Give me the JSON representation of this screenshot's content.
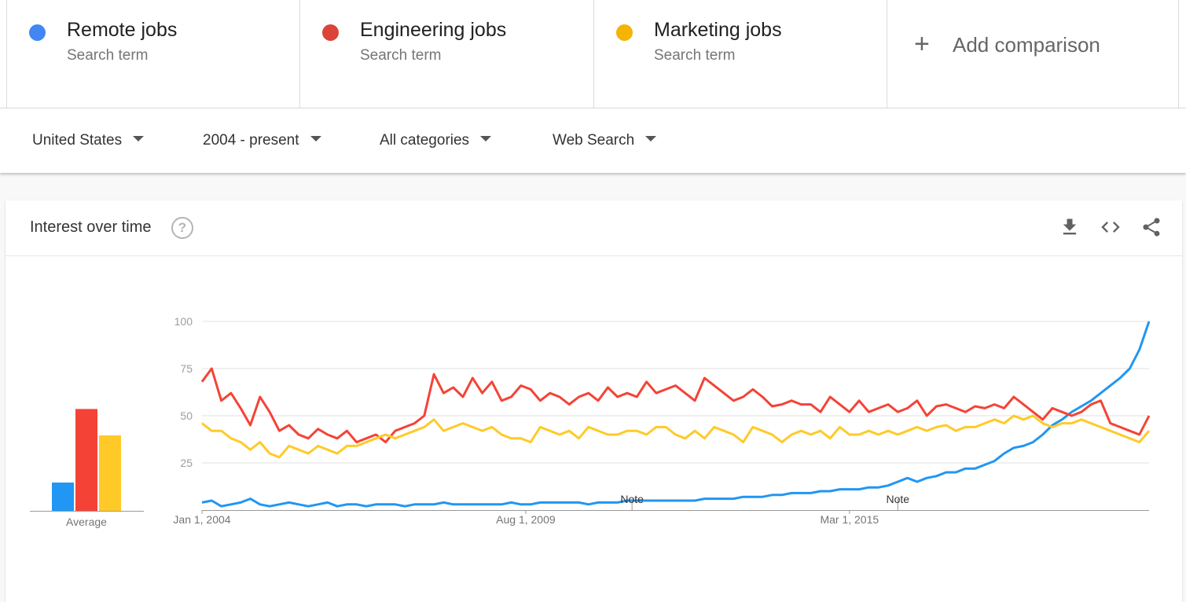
{
  "terms": [
    {
      "label": "Remote jobs",
      "subtitle": "Search term",
      "color": "#4285F4"
    },
    {
      "label": "Engineering jobs",
      "subtitle": "Search term",
      "color": "#DB4437"
    },
    {
      "label": "Marketing jobs",
      "subtitle": "Search term",
      "color": "#F4B400"
    }
  ],
  "add_comparison": {
    "label": "Add comparison",
    "icon": "plus-icon"
  },
  "filters": {
    "region": "United States",
    "time_range": "2004 - present",
    "category": "All categories",
    "property": "Web Search"
  },
  "card": {
    "title": "Interest over time",
    "icons": [
      "help-icon",
      "download-icon",
      "embed-code-icon",
      "share-icon"
    ]
  },
  "chart_data": [
    {
      "type": "bar",
      "categories": [
        "Remote jobs",
        "Engineering jobs",
        "Marketing jobs"
      ],
      "values": [
        15,
        54,
        40
      ],
      "xlabel": "Average",
      "colors": [
        "#2196F3",
        "#F44336",
        "#FFCA28"
      ],
      "ylim": [
        0,
        100
      ]
    },
    {
      "type": "line",
      "x_tick_labels": [
        "Jan 1, 2004",
        "Aug 1, 2009",
        "Mar 1, 2015"
      ],
      "y_ticks": [
        25,
        50,
        75,
        100
      ],
      "ylim": [
        0,
        100
      ],
      "xlim": [
        "2004-01",
        "2020-05"
      ],
      "grid": true,
      "annotations": [
        {
          "text": "Note",
          "x": "2011-06"
        },
        {
          "text": "Note",
          "x": "2016-01"
        }
      ],
      "x": [
        "2004-01",
        "2004-03",
        "2004-05",
        "2004-07",
        "2004-09",
        "2004-11",
        "2005-01",
        "2005-03",
        "2005-05",
        "2005-07",
        "2005-09",
        "2005-11",
        "2006-01",
        "2006-03",
        "2006-05",
        "2006-07",
        "2006-09",
        "2006-11",
        "2007-01",
        "2007-03",
        "2007-05",
        "2007-07",
        "2007-09",
        "2007-11",
        "2008-01",
        "2008-03",
        "2008-05",
        "2008-07",
        "2008-09",
        "2008-11",
        "2009-01",
        "2009-03",
        "2009-05",
        "2009-07",
        "2009-09",
        "2009-11",
        "2010-01",
        "2010-03",
        "2010-05",
        "2010-07",
        "2010-09",
        "2010-11",
        "2011-01",
        "2011-03",
        "2011-05",
        "2011-07",
        "2011-09",
        "2011-11",
        "2012-01",
        "2012-03",
        "2012-05",
        "2012-07",
        "2012-09",
        "2012-11",
        "2013-01",
        "2013-03",
        "2013-05",
        "2013-07",
        "2013-09",
        "2013-11",
        "2014-01",
        "2014-03",
        "2014-05",
        "2014-07",
        "2014-09",
        "2014-11",
        "2015-01",
        "2015-03",
        "2015-05",
        "2015-07",
        "2015-09",
        "2015-11",
        "2016-01",
        "2016-03",
        "2016-05",
        "2016-07",
        "2016-09",
        "2016-11",
        "2017-01",
        "2017-03",
        "2017-05",
        "2017-07",
        "2017-09",
        "2017-11",
        "2018-01",
        "2018-03",
        "2018-05",
        "2018-07",
        "2018-09",
        "2018-11",
        "2019-01",
        "2019-03",
        "2019-05",
        "2019-07",
        "2019-09",
        "2019-11",
        "2020-01",
        "2020-03",
        "2020-05"
      ],
      "series": [
        {
          "name": "Remote jobs",
          "color": "#2196F3",
          "values": [
            4,
            5,
            2,
            3,
            4,
            6,
            3,
            2,
            3,
            4,
            3,
            2,
            3,
            4,
            2,
            3,
            3,
            2,
            3,
            3,
            3,
            2,
            3,
            3,
            3,
            4,
            3,
            3,
            3,
            3,
            3,
            3,
            4,
            3,
            3,
            4,
            4,
            4,
            4,
            4,
            3,
            4,
            4,
            4,
            5,
            5,
            5,
            5,
            5,
            5,
            5,
            5,
            6,
            6,
            6,
            6,
            7,
            7,
            7,
            8,
            8,
            9,
            9,
            9,
            10,
            10,
            11,
            11,
            11,
            12,
            12,
            13,
            15,
            17,
            15,
            17,
            18,
            20,
            20,
            22,
            22,
            24,
            26,
            30,
            33,
            34,
            36,
            40,
            45,
            48,
            52,
            55,
            58,
            62,
            66,
            70,
            75,
            85,
            100
          ]
        },
        {
          "name": "Engineering jobs",
          "color": "#F44336",
          "values": [
            68,
            75,
            58,
            62,
            54,
            45,
            60,
            52,
            42,
            45,
            40,
            38,
            43,
            40,
            38,
            42,
            36,
            38,
            40,
            36,
            42,
            44,
            46,
            50,
            72,
            62,
            65,
            60,
            70,
            62,
            68,
            58,
            60,
            66,
            64,
            58,
            62,
            60,
            56,
            60,
            62,
            58,
            65,
            60,
            62,
            60,
            68,
            62,
            64,
            66,
            62,
            58,
            70,
            66,
            62,
            58,
            60,
            64,
            60,
            55,
            56,
            58,
            56,
            56,
            52,
            60,
            56,
            52,
            58,
            52,
            54,
            56,
            52,
            54,
            58,
            50,
            55,
            56,
            54,
            52,
            55,
            54,
            56,
            54,
            60,
            56,
            52,
            48,
            54,
            52,
            50,
            52,
            56,
            58,
            46,
            44,
            42,
            40,
            50
          ]
        },
        {
          "name": "Marketing jobs",
          "color": "#FFCA28",
          "values": [
            46,
            42,
            42,
            38,
            36,
            32,
            36,
            30,
            28,
            34,
            32,
            30,
            34,
            32,
            30,
            34,
            34,
            36,
            38,
            40,
            38,
            40,
            42,
            44,
            48,
            42,
            44,
            46,
            44,
            42,
            44,
            40,
            38,
            38,
            36,
            44,
            42,
            40,
            42,
            38,
            44,
            42,
            40,
            40,
            42,
            42,
            40,
            44,
            44,
            40,
            38,
            42,
            38,
            44,
            42,
            40,
            36,
            44,
            42,
            40,
            36,
            40,
            42,
            40,
            42,
            38,
            44,
            40,
            40,
            42,
            40,
            42,
            40,
            42,
            44,
            42,
            44,
            45,
            42,
            44,
            44,
            46,
            48,
            46,
            50,
            48,
            50,
            46,
            44,
            46,
            46,
            48,
            46,
            44,
            42,
            40,
            38,
            36,
            42
          ]
        }
      ]
    }
  ]
}
